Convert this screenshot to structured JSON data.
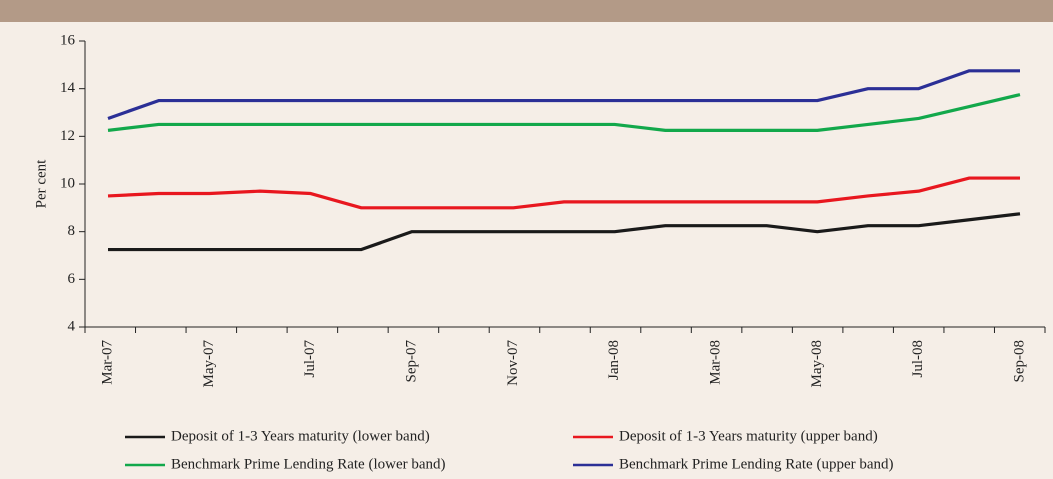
{
  "chart_data": {
    "type": "line",
    "y_label": "Per cent",
    "categories": [
      "Mar-07",
      null,
      "May-07",
      null,
      "Jul-07",
      null,
      "Sep-07",
      null,
      "Nov-07",
      null,
      "Jan-08",
      null,
      "Mar-08",
      null,
      "May-08",
      null,
      "Jul-08",
      null,
      "Sep-08"
    ],
    "series": [
      {
        "name": "Deposit of 1-3 Years maturity (lower band)",
        "color": "#1a1a1a",
        "values": [
          7.25,
          7.25,
          7.25,
          7.25,
          7.25,
          7.25,
          8,
          8,
          8,
          8,
          8,
          8.25,
          8.25,
          8.25,
          8,
          8.25,
          8.25,
          8.5,
          8.75
        ]
      },
      {
        "name": "Deposit of 1-3 Years maturity (upper band)",
        "color": "#e8171f",
        "values": [
          9.5,
          9.6,
          9.6,
          9.7,
          9.6,
          9,
          9,
          9,
          9,
          9.25,
          9.25,
          9.25,
          9.25,
          9.25,
          9.25,
          9.5,
          9.7,
          10.25,
          10.25
        ]
      },
      {
        "name": "Benchmark Prime Lending Rate (lower band)",
        "color": "#12a84b",
        "values": [
          12.25,
          12.5,
          12.5,
          12.5,
          12.5,
          12.5,
          12.5,
          12.5,
          12.5,
          12.5,
          12.5,
          12.25,
          12.25,
          12.25,
          12.25,
          12.5,
          12.75,
          13.25,
          13.75
        ]
      },
      {
        "name": "Benchmark Prime Lending Rate (upper band)",
        "color": "#2b2f96",
        "values": [
          12.75,
          13.5,
          13.5,
          13.5,
          13.5,
          13.5,
          13.5,
          13.5,
          13.5,
          13.5,
          13.5,
          13.5,
          13.5,
          13.5,
          13.5,
          14,
          14,
          14.75,
          14.75
        ]
      }
    ],
    "ylim": [
      4,
      16
    ],
    "yticks": [
      4,
      6,
      8,
      10,
      12,
      14,
      16
    ]
  }
}
